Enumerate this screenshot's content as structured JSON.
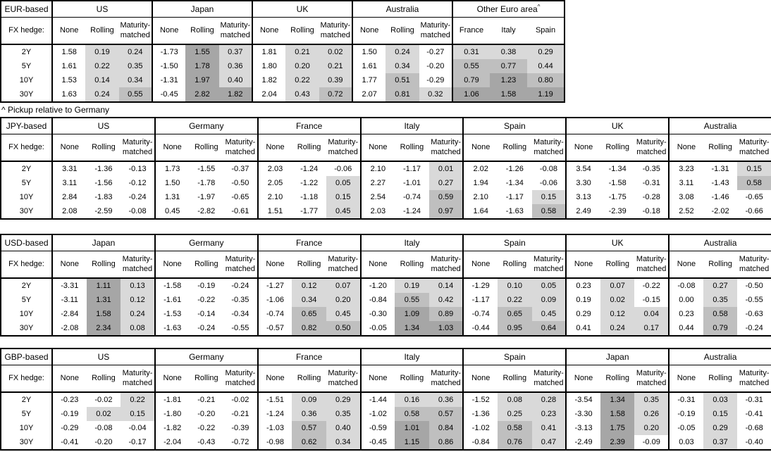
{
  "footnote": "^ Pickup relative to Germany",
  "footnote_marker": "^",
  "fx_hedge_label": "FX hedge:",
  "default_hedge_columns": [
    "None",
    "Rolling",
    "Maturity-matched"
  ],
  "tenors": [
    "2Y",
    "5Y",
    "10Y",
    "30Y"
  ],
  "colors": {
    "shade_light": "#d9d9d9",
    "shade_mid": "#bfbfbf",
    "shade_dark": "#a6a6a6",
    "border": "#000000",
    "background": "#ffffff"
  },
  "shading_rule": {
    "applies_to": "hedged columns only (never the None column); Other Euro area columns always",
    "buckets": [
      {
        "min_exclusive": 0,
        "max_exclusive": 0.5,
        "color": "#d9d9d9"
      },
      {
        "min_inclusive": 0.5,
        "max_exclusive": 1.0,
        "color": "#bfbfbf"
      },
      {
        "min_inclusive": 1.0,
        "color": "#a6a6a6"
      }
    ]
  },
  "chart_data": [
    {
      "type": "table",
      "title": "EUR-based",
      "row_labels": [
        "2Y",
        "5Y",
        "10Y",
        "30Y"
      ],
      "groups": [
        {
          "name": "US",
          "columns": [
            "None",
            "Rolling",
            "Maturity-matched"
          ],
          "values": [
            [
              "1.58",
              "0.19",
              "0.24"
            ],
            [
              "1.61",
              "0.22",
              "0.35"
            ],
            [
              "1.53",
              "0.14",
              "0.34"
            ],
            [
              "1.63",
              "0.24",
              "0.55"
            ]
          ]
        },
        {
          "name": "Japan",
          "columns": [
            "None",
            "Rolling",
            "Maturity-matched"
          ],
          "values": [
            [
              "-1.73",
              "1.55",
              "0.37"
            ],
            [
              "-1.50",
              "1.78",
              "0.36"
            ],
            [
              "-1.31",
              "1.97",
              "0.40"
            ],
            [
              "-0.45",
              "2.82",
              "1.82"
            ]
          ]
        },
        {
          "name": "UK",
          "columns": [
            "None",
            "Rolling",
            "Maturity-matched"
          ],
          "values": [
            [
              "1.81",
              "0.21",
              "0.02"
            ],
            [
              "1.80",
              "0.20",
              "0.21"
            ],
            [
              "1.82",
              "0.22",
              "0.39"
            ],
            [
              "2.04",
              "0.43",
              "0.72"
            ]
          ]
        },
        {
          "name": "Australia",
          "columns": [
            "None",
            "Rolling",
            "Maturity-matched"
          ],
          "values": [
            [
              "1.50",
              "0.24",
              "-0.27"
            ],
            [
              "1.61",
              "0.34",
              "-0.20"
            ],
            [
              "1.77",
              "0.51",
              "-0.29"
            ],
            [
              "2.07",
              "0.81",
              "0.32"
            ]
          ]
        },
        {
          "name": "Other Euro area",
          "sup": "^",
          "all_shaded": true,
          "columns": [
            "France",
            "Italy",
            "Spain"
          ],
          "values": [
            [
              "0.31",
              "0.38",
              "0.29"
            ],
            [
              "0.55",
              "0.77",
              "0.44"
            ],
            [
              "0.79",
              "1.23",
              "0.80"
            ],
            [
              "1.06",
              "1.58",
              "1.19"
            ]
          ]
        }
      ]
    },
    {
      "type": "table",
      "title": "JPY-based",
      "row_labels": [
        "2Y",
        "5Y",
        "10Y",
        "30Y"
      ],
      "groups": [
        {
          "name": "US",
          "columns": [
            "None",
            "Rolling",
            "Maturity-matched"
          ],
          "values": [
            [
              "3.31",
              "-1.36",
              "-0.13"
            ],
            [
              "3.11",
              "-1.56",
              "-0.12"
            ],
            [
              "2.84",
              "-1.83",
              "-0.24"
            ],
            [
              "2.08",
              "-2.59",
              "-0.08"
            ]
          ]
        },
        {
          "name": "Germany",
          "columns": [
            "None",
            "Rolling",
            "Maturity-matched"
          ],
          "values": [
            [
              "1.73",
              "-1.55",
              "-0.37"
            ],
            [
              "1.50",
              "-1.78",
              "-0.50"
            ],
            [
              "1.31",
              "-1.97",
              "-0.65"
            ],
            [
              "0.45",
              "-2.82",
              "-0.61"
            ]
          ]
        },
        {
          "name": "France",
          "columns": [
            "None",
            "Rolling",
            "Maturity-matched"
          ],
          "values": [
            [
              "2.03",
              "-1.24",
              "-0.06"
            ],
            [
              "2.05",
              "-1.22",
              "0.05"
            ],
            [
              "2.10",
              "-1.18",
              "0.15"
            ],
            [
              "1.51",
              "-1.77",
              "0.45"
            ]
          ]
        },
        {
          "name": "Italy",
          "columns": [
            "None",
            "Rolling",
            "Maturity-matched"
          ],
          "values": [
            [
              "2.10",
              "-1.17",
              "0.01"
            ],
            [
              "2.27",
              "-1.01",
              "0.27"
            ],
            [
              "2.54",
              "-0.74",
              "0.59"
            ],
            [
              "2.03",
              "-1.24",
              "0.97"
            ]
          ]
        },
        {
          "name": "Spain",
          "columns": [
            "None",
            "Rolling",
            "Maturity-matched"
          ],
          "values": [
            [
              "2.02",
              "-1.26",
              "-0.08"
            ],
            [
              "1.94",
              "-1.34",
              "-0.06"
            ],
            [
              "2.10",
              "-1.17",
              "0.15"
            ],
            [
              "1.64",
              "-1.63",
              "0.58"
            ]
          ]
        },
        {
          "name": "UK",
          "columns": [
            "None",
            "Rolling",
            "Maturity-matched"
          ],
          "values": [
            [
              "3.54",
              "-1.34",
              "-0.35"
            ],
            [
              "3.30",
              "-1.58",
              "-0.31"
            ],
            [
              "3.13",
              "-1.75",
              "-0.28"
            ],
            [
              "2.49",
              "-2.39",
              "-0.18"
            ]
          ]
        },
        {
          "name": "Australia",
          "columns": [
            "None",
            "Rolling",
            "Maturity-matched"
          ],
          "values": [
            [
              "3.23",
              "-1.31",
              "0.15"
            ],
            [
              "3.11",
              "-1.43",
              "0.58"
            ],
            [
              "3.08",
              "-1.46",
              "-0.65"
            ],
            [
              "2.52",
              "-2.02",
              "-0.66"
            ]
          ]
        }
      ]
    },
    {
      "type": "table",
      "title": "USD-based",
      "row_labels": [
        "2Y",
        "5Y",
        "10Y",
        "30Y"
      ],
      "groups": [
        {
          "name": "Japan",
          "columns": [
            "None",
            "Rolling",
            "Maturity-matched"
          ],
          "values": [
            [
              "-3.31",
              "1.11",
              "0.13"
            ],
            [
              "-3.11",
              "1.31",
              "0.12"
            ],
            [
              "-2.84",
              "1.58",
              "0.24"
            ],
            [
              "-2.08",
              "2.34",
              "0.08"
            ]
          ]
        },
        {
          "name": "Germany",
          "columns": [
            "None",
            "Rolling",
            "Maturity-matched"
          ],
          "values": [
            [
              "-1.58",
              "-0.19",
              "-0.24"
            ],
            [
              "-1.61",
              "-0.22",
              "-0.35"
            ],
            [
              "-1.53",
              "-0.14",
              "-0.34"
            ],
            [
              "-1.63",
              "-0.24",
              "-0.55"
            ]
          ]
        },
        {
          "name": "France",
          "columns": [
            "None",
            "Rolling",
            "Maturity-matched"
          ],
          "values": [
            [
              "-1.27",
              "0.12",
              "0.07"
            ],
            [
              "-1.06",
              "0.34",
              "0.20"
            ],
            [
              "-0.74",
              "0.65",
              "0.45"
            ],
            [
              "-0.57",
              "0.82",
              "0.50"
            ]
          ]
        },
        {
          "name": "Italy",
          "columns": [
            "None",
            "Rolling",
            "Maturity-matched"
          ],
          "values": [
            [
              "-1.20",
              "0.19",
              "0.14"
            ],
            [
              "-0.84",
              "0.55",
              "0.42"
            ],
            [
              "-0.30",
              "1.09",
              "0.89"
            ],
            [
              "-0.05",
              "1.34",
              "1.03"
            ]
          ]
        },
        {
          "name": "Spain",
          "columns": [
            "None",
            "Rolling",
            "Maturity-matched"
          ],
          "values": [
            [
              "-1.29",
              "0.10",
              "0.05"
            ],
            [
              "-1.17",
              "0.22",
              "0.09"
            ],
            [
              "-0.74",
              "0.65",
              "0.45"
            ],
            [
              "-0.44",
              "0.95",
              "0.64"
            ]
          ]
        },
        {
          "name": "UK",
          "columns": [
            "None",
            "Rolling",
            "Maturity-matched"
          ],
          "values": [
            [
              "0.23",
              "0.07",
              "-0.22"
            ],
            [
              "0.19",
              "0.02",
              "-0.15"
            ],
            [
              "0.29",
              "0.12",
              "0.04"
            ],
            [
              "0.41",
              "0.24",
              "0.17"
            ]
          ]
        },
        {
          "name": "Australia",
          "columns": [
            "None",
            "Rolling",
            "Maturity-matched"
          ],
          "values": [
            [
              "-0.08",
              "0.27",
              "-0.50"
            ],
            [
              "0.00",
              "0.35",
              "-0.55"
            ],
            [
              "0.23",
              "0.58",
              "-0.63"
            ],
            [
              "0.44",
              "0.79",
              "-0.24"
            ]
          ]
        }
      ]
    },
    {
      "type": "table",
      "title": "GBP-based",
      "row_labels": [
        "2Y",
        "5Y",
        "10Y",
        "30Y"
      ],
      "groups": [
        {
          "name": "US",
          "columns": [
            "None",
            "Rolling",
            "Maturity-matched"
          ],
          "values": [
            [
              "-0.23",
              "-0.02",
              "0.22"
            ],
            [
              "-0.19",
              "0.02",
              "0.15"
            ],
            [
              "-0.29",
              "-0.08",
              "-0.04"
            ],
            [
              "-0.41",
              "-0.20",
              "-0.17"
            ]
          ]
        },
        {
          "name": "Germany",
          "columns": [
            "None",
            "Rolling",
            "Maturity-matched"
          ],
          "values": [
            [
              "-1.81",
              "-0.21",
              "-0.02"
            ],
            [
              "-1.80",
              "-0.20",
              "-0.21"
            ],
            [
              "-1.82",
              "-0.22",
              "-0.39"
            ],
            [
              "-2.04",
              "-0.43",
              "-0.72"
            ]
          ]
        },
        {
          "name": "France",
          "columns": [
            "None",
            "Rolling",
            "Maturity-matched"
          ],
          "values": [
            [
              "-1.51",
              "0.09",
              "0.29"
            ],
            [
              "-1.24",
              "0.36",
              "0.35"
            ],
            [
              "-1.03",
              "0.57",
              "0.40"
            ],
            [
              "-0.98",
              "0.62",
              "0.34"
            ]
          ]
        },
        {
          "name": "Italy",
          "columns": [
            "None",
            "Rolling",
            "Maturity-matched"
          ],
          "values": [
            [
              "-1.44",
              "0.16",
              "0.36"
            ],
            [
              "-1.02",
              "0.58",
              "0.57"
            ],
            [
              "-0.59",
              "1.01",
              "0.84"
            ],
            [
              "-0.45",
              "1.15",
              "0.86"
            ]
          ]
        },
        {
          "name": "Spain",
          "columns": [
            "None",
            "Rolling",
            "Maturity-matched"
          ],
          "values": [
            [
              "-1.52",
              "0.08",
              "0.28"
            ],
            [
              "-1.36",
              "0.25",
              "0.23"
            ],
            [
              "-1.02",
              "0.58",
              "0.41"
            ],
            [
              "-0.84",
              "0.76",
              "0.47"
            ]
          ]
        },
        {
          "name": "Japan",
          "columns": [
            "None",
            "Rolling",
            "Maturity-matched"
          ],
          "values": [
            [
              "-3.54",
              "1.34",
              "0.35"
            ],
            [
              "-3.30",
              "1.58",
              "0.26"
            ],
            [
              "-3.13",
              "1.75",
              "0.20"
            ],
            [
              "-2.49",
              "2.39",
              "-0.09"
            ]
          ]
        },
        {
          "name": "Australia",
          "columns": [
            "None",
            "Rolling",
            "Maturity-matched"
          ],
          "values": [
            [
              "-0.31",
              "0.03",
              "-0.31"
            ],
            [
              "-0.19",
              "0.15",
              "-0.41"
            ],
            [
              "-0.05",
              "0.29",
              "-0.68"
            ],
            [
              "0.03",
              "0.37",
              "-0.40"
            ]
          ]
        }
      ]
    }
  ]
}
